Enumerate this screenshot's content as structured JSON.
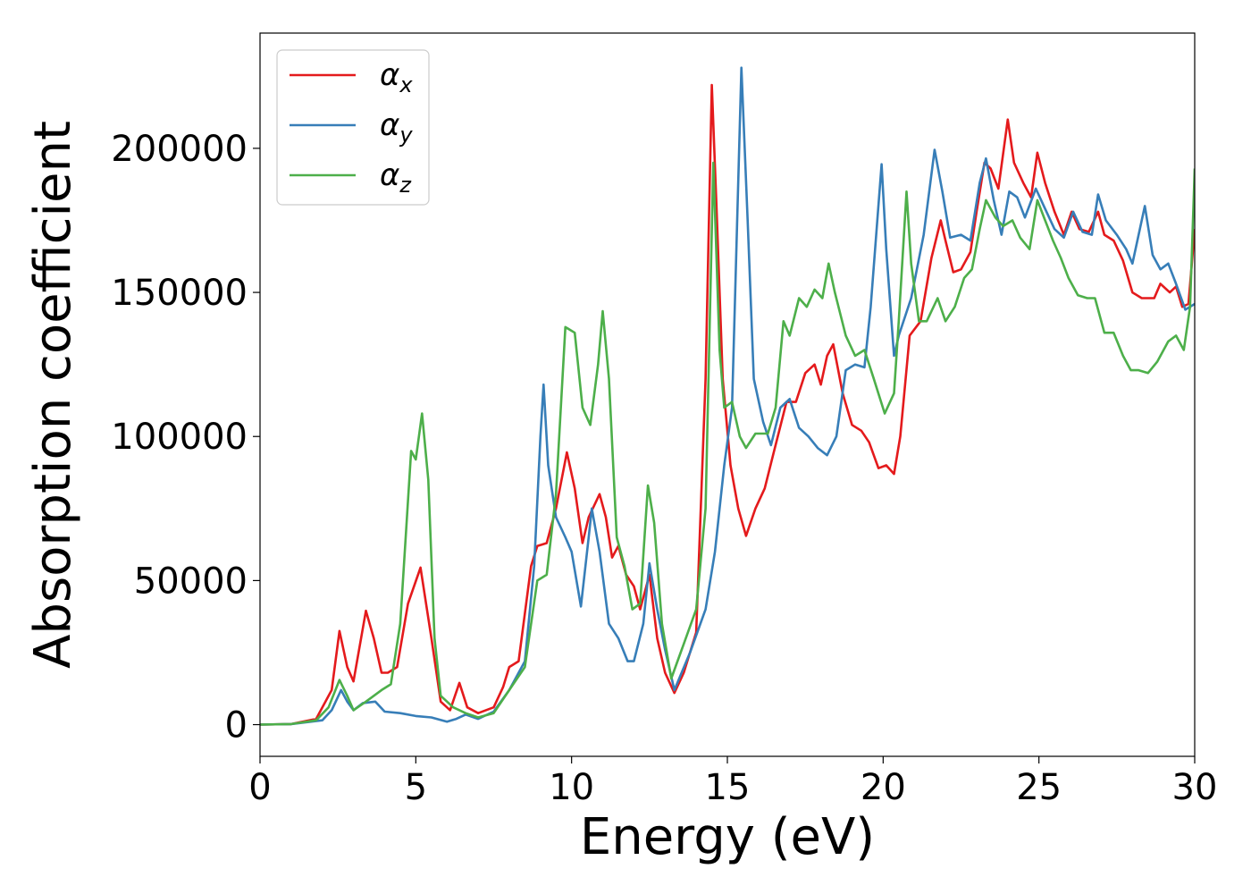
{
  "chart_data": {
    "type": "line",
    "title": "",
    "xlabel": "Energy (eV)",
    "ylabel": "Absorption coefficient",
    "xlim": [
      0,
      30
    ],
    "ylim": [
      -11000,
      240000
    ],
    "xticks": [
      0,
      5,
      10,
      15,
      20,
      25,
      30
    ],
    "yticks": [
      0,
      50000,
      100000,
      150000,
      200000
    ],
    "xtick_labels": [
      "0",
      "5",
      "10",
      "15",
      "20",
      "25",
      "30"
    ],
    "ytick_labels": [
      "0",
      "50000",
      "100000",
      "150000",
      "200000"
    ],
    "grid": false,
    "legend_position": "top-left",
    "series": [
      {
        "name": "α",
        "subscript": "x",
        "color": "#e41a1c",
        "points": [
          [
            0,
            0
          ],
          [
            1,
            200
          ],
          [
            1.8,
            2000
          ],
          [
            2.3,
            12000
          ],
          [
            2.55,
            32500
          ],
          [
            2.8,
            20000
          ],
          [
            3.0,
            15000
          ],
          [
            3.4,
            39500
          ],
          [
            3.65,
            30000
          ],
          [
            3.9,
            18000
          ],
          [
            4.1,
            18000
          ],
          [
            4.4,
            20000
          ],
          [
            4.75,
            42000
          ],
          [
            5.15,
            54500
          ],
          [
            5.5,
            30000
          ],
          [
            5.8,
            8000
          ],
          [
            6.1,
            5000
          ],
          [
            6.4,
            14500
          ],
          [
            6.65,
            6000
          ],
          [
            7.0,
            4000
          ],
          [
            7.5,
            6000
          ],
          [
            7.8,
            13000
          ],
          [
            8.0,
            20000
          ],
          [
            8.3,
            22000
          ],
          [
            8.7,
            55000
          ],
          [
            8.9,
            62000
          ],
          [
            9.2,
            63000
          ],
          [
            9.5,
            75000
          ],
          [
            9.85,
            94500
          ],
          [
            10.1,
            82000
          ],
          [
            10.35,
            63000
          ],
          [
            10.55,
            72000
          ],
          [
            10.9,
            80000
          ],
          [
            11.1,
            72000
          ],
          [
            11.3,
            58000
          ],
          [
            11.5,
            62000
          ],
          [
            11.75,
            52000
          ],
          [
            12.0,
            48000
          ],
          [
            12.2,
            40000
          ],
          [
            12.5,
            52000
          ],
          [
            12.75,
            30000
          ],
          [
            13.0,
            18000
          ],
          [
            13.3,
            11000
          ],
          [
            13.6,
            18000
          ],
          [
            14.0,
            32000
          ],
          [
            14.3,
            120000
          ],
          [
            14.5,
            222000
          ],
          [
            14.65,
            180000
          ],
          [
            14.85,
            120000
          ],
          [
            15.1,
            90000
          ],
          [
            15.35,
            75000
          ],
          [
            15.6,
            65500
          ],
          [
            15.9,
            75000
          ],
          [
            16.2,
            82000
          ],
          [
            16.5,
            95000
          ],
          [
            16.9,
            112000
          ],
          [
            17.2,
            112000
          ],
          [
            17.5,
            122000
          ],
          [
            17.8,
            125000
          ],
          [
            18.0,
            118000
          ],
          [
            18.2,
            128000
          ],
          [
            18.4,
            132000
          ],
          [
            18.7,
            115000
          ],
          [
            19.0,
            104000
          ],
          [
            19.3,
            102000
          ],
          [
            19.55,
            98000
          ],
          [
            19.85,
            89000
          ],
          [
            20.1,
            90000
          ],
          [
            20.35,
            87000
          ],
          [
            20.55,
            100000
          ],
          [
            20.85,
            135000
          ],
          [
            21.2,
            140000
          ],
          [
            21.55,
            162000
          ],
          [
            21.85,
            175000
          ],
          [
            22.0,
            168000
          ],
          [
            22.25,
            157000
          ],
          [
            22.5,
            158000
          ],
          [
            22.8,
            164000
          ],
          [
            23.0,
            178000
          ],
          [
            23.25,
            195000
          ],
          [
            23.45,
            193000
          ],
          [
            23.7,
            186000
          ],
          [
            24.0,
            210000
          ],
          [
            24.2,
            195000
          ],
          [
            24.5,
            188000
          ],
          [
            24.75,
            183000
          ],
          [
            24.95,
            198500
          ],
          [
            25.2,
            188000
          ],
          [
            25.5,
            178000
          ],
          [
            25.8,
            170000
          ],
          [
            26.05,
            178000
          ],
          [
            26.3,
            172000
          ],
          [
            26.6,
            171000
          ],
          [
            26.9,
            178000
          ],
          [
            27.1,
            170000
          ],
          [
            27.4,
            168000
          ],
          [
            27.7,
            161000
          ],
          [
            28.0,
            150000
          ],
          [
            28.3,
            148000
          ],
          [
            28.7,
            148000
          ],
          [
            28.9,
            153000
          ],
          [
            29.2,
            150000
          ],
          [
            29.4,
            152000
          ],
          [
            29.6,
            145000
          ],
          [
            29.8,
            146000
          ],
          [
            30.0,
            172000
          ]
        ]
      },
      {
        "name": "α",
        "subscript": "y",
        "color": "#377eb8",
        "points": [
          [
            0,
            0
          ],
          [
            1,
            200
          ],
          [
            2.0,
            1500
          ],
          [
            2.3,
            5000
          ],
          [
            2.6,
            12000
          ],
          [
            2.8,
            8000
          ],
          [
            3.0,
            5000
          ],
          [
            3.3,
            7500
          ],
          [
            3.7,
            8000
          ],
          [
            4.0,
            4500
          ],
          [
            4.5,
            4000
          ],
          [
            5.0,
            3000
          ],
          [
            5.5,
            2500
          ],
          [
            6.0,
            1000
          ],
          [
            6.3,
            2000
          ],
          [
            6.6,
            3500
          ],
          [
            7.0,
            2000
          ],
          [
            7.5,
            4500
          ],
          [
            8.0,
            12000
          ],
          [
            8.5,
            22000
          ],
          [
            8.8,
            55000
          ],
          [
            9.0,
            100000
          ],
          [
            9.1,
            118000
          ],
          [
            9.25,
            90000
          ],
          [
            9.5,
            72000
          ],
          [
            9.8,
            65000
          ],
          [
            10.0,
            60000
          ],
          [
            10.3,
            41000
          ],
          [
            10.55,
            65000
          ],
          [
            10.65,
            75000
          ],
          [
            10.9,
            60000
          ],
          [
            11.2,
            35000
          ],
          [
            11.5,
            30000
          ],
          [
            11.8,
            22000
          ],
          [
            12.0,
            22000
          ],
          [
            12.3,
            35000
          ],
          [
            12.5,
            56000
          ],
          [
            12.75,
            40000
          ],
          [
            13.0,
            26000
          ],
          [
            13.3,
            12000
          ],
          [
            13.8,
            25000
          ],
          [
            14.3,
            40000
          ],
          [
            14.6,
            60000
          ],
          [
            14.9,
            90000
          ],
          [
            15.15,
            110000
          ],
          [
            15.45,
            228000
          ],
          [
            15.65,
            175000
          ],
          [
            15.85,
            120000
          ],
          [
            16.15,
            105000
          ],
          [
            16.4,
            97000
          ],
          [
            16.7,
            110000
          ],
          [
            17.0,
            113000
          ],
          [
            17.3,
            103000
          ],
          [
            17.6,
            100000
          ],
          [
            17.9,
            96000
          ],
          [
            18.2,
            93500
          ],
          [
            18.5,
            100000
          ],
          [
            18.8,
            123000
          ],
          [
            19.1,
            125000
          ],
          [
            19.4,
            124000
          ],
          [
            19.6,
            145000
          ],
          [
            19.95,
            194500
          ],
          [
            20.1,
            165000
          ],
          [
            20.35,
            128000
          ],
          [
            20.5,
            135000
          ],
          [
            20.9,
            148000
          ],
          [
            21.3,
            170000
          ],
          [
            21.65,
            199500
          ],
          [
            21.9,
            185000
          ],
          [
            22.15,
            169000
          ],
          [
            22.5,
            170000
          ],
          [
            22.8,
            168000
          ],
          [
            23.1,
            188000
          ],
          [
            23.3,
            196500
          ],
          [
            23.55,
            182000
          ],
          [
            23.8,
            170000
          ],
          [
            24.05,
            185000
          ],
          [
            24.3,
            183000
          ],
          [
            24.55,
            176000
          ],
          [
            24.9,
            186000
          ],
          [
            25.2,
            179000
          ],
          [
            25.5,
            172000
          ],
          [
            25.8,
            169000
          ],
          [
            26.1,
            178000
          ],
          [
            26.4,
            171000
          ],
          [
            26.7,
            170000
          ],
          [
            26.9,
            184000
          ],
          [
            27.15,
            175000
          ],
          [
            27.5,
            170000
          ],
          [
            27.8,
            165000
          ],
          [
            28.0,
            160000
          ],
          [
            28.4,
            180000
          ],
          [
            28.65,
            163000
          ],
          [
            28.9,
            158000
          ],
          [
            29.15,
            160000
          ],
          [
            29.4,
            153000
          ],
          [
            29.7,
            144000
          ],
          [
            30.0,
            146000
          ]
        ]
      },
      {
        "name": "α",
        "subscript": "z",
        "color": "#4daf4a",
        "points": [
          [
            0,
            0
          ],
          [
            1,
            200
          ],
          [
            1.8,
            1500
          ],
          [
            2.2,
            6000
          ],
          [
            2.55,
            15500
          ],
          [
            2.8,
            10000
          ],
          [
            3.0,
            5000
          ],
          [
            3.4,
            8000
          ],
          [
            3.9,
            12000
          ],
          [
            4.2,
            14000
          ],
          [
            4.5,
            35000
          ],
          [
            4.85,
            95000
          ],
          [
            5.0,
            92000
          ],
          [
            5.2,
            108000
          ],
          [
            5.4,
            85000
          ],
          [
            5.6,
            30000
          ],
          [
            5.8,
            10000
          ],
          [
            6.2,
            6000
          ],
          [
            6.6,
            4000
          ],
          [
            7.0,
            2500
          ],
          [
            7.5,
            4000
          ],
          [
            8.0,
            12000
          ],
          [
            8.5,
            20000
          ],
          [
            8.9,
            50000
          ],
          [
            9.2,
            52000
          ],
          [
            9.5,
            80000
          ],
          [
            9.8,
            138000
          ],
          [
            10.1,
            136000
          ],
          [
            10.35,
            110000
          ],
          [
            10.6,
            104000
          ],
          [
            10.85,
            125000
          ],
          [
            11.0,
            143500
          ],
          [
            11.2,
            120000
          ],
          [
            11.45,
            65000
          ],
          [
            11.7,
            55000
          ],
          [
            11.95,
            40000
          ],
          [
            12.2,
            42000
          ],
          [
            12.45,
            83000
          ],
          [
            12.65,
            70000
          ],
          [
            12.9,
            35000
          ],
          [
            13.2,
            16000
          ],
          [
            13.6,
            28000
          ],
          [
            14.0,
            40000
          ],
          [
            14.3,
            75000
          ],
          [
            14.55,
            195000
          ],
          [
            14.75,
            130000
          ],
          [
            14.9,
            110000
          ],
          [
            15.15,
            112000
          ],
          [
            15.4,
            100000
          ],
          [
            15.6,
            96000
          ],
          [
            15.9,
            101000
          ],
          [
            16.3,
            101000
          ],
          [
            16.55,
            110000
          ],
          [
            16.8,
            140000
          ],
          [
            17.0,
            135000
          ],
          [
            17.3,
            148000
          ],
          [
            17.55,
            145000
          ],
          [
            17.8,
            151000
          ],
          [
            18.05,
            148000
          ],
          [
            18.25,
            160000
          ],
          [
            18.45,
            150000
          ],
          [
            18.8,
            135000
          ],
          [
            19.1,
            128000
          ],
          [
            19.4,
            130000
          ],
          [
            19.7,
            120000
          ],
          [
            20.05,
            108000
          ],
          [
            20.35,
            115000
          ],
          [
            20.5,
            140000
          ],
          [
            20.75,
            185000
          ],
          [
            20.9,
            160000
          ],
          [
            21.15,
            140000
          ],
          [
            21.4,
            140000
          ],
          [
            21.75,
            148000
          ],
          [
            22.0,
            140000
          ],
          [
            22.3,
            145000
          ],
          [
            22.6,
            155000
          ],
          [
            22.85,
            158000
          ],
          [
            23.1,
            172000
          ],
          [
            23.3,
            182000
          ],
          [
            23.6,
            176000
          ],
          [
            23.85,
            173000
          ],
          [
            24.15,
            175000
          ],
          [
            24.4,
            169000
          ],
          [
            24.7,
            165000
          ],
          [
            24.95,
            182000
          ],
          [
            25.2,
            175000
          ],
          [
            25.45,
            168000
          ],
          [
            25.7,
            162000
          ],
          [
            25.95,
            155000
          ],
          [
            26.25,
            149000
          ],
          [
            26.55,
            148000
          ],
          [
            26.8,
            148000
          ],
          [
            27.1,
            136000
          ],
          [
            27.4,
            136000
          ],
          [
            27.7,
            128000
          ],
          [
            27.95,
            123000
          ],
          [
            28.2,
            123000
          ],
          [
            28.5,
            122000
          ],
          [
            28.8,
            126000
          ],
          [
            29.15,
            133000
          ],
          [
            29.4,
            135000
          ],
          [
            29.65,
            130000
          ],
          [
            29.85,
            145000
          ],
          [
            30.0,
            193000
          ]
        ]
      }
    ]
  }
}
